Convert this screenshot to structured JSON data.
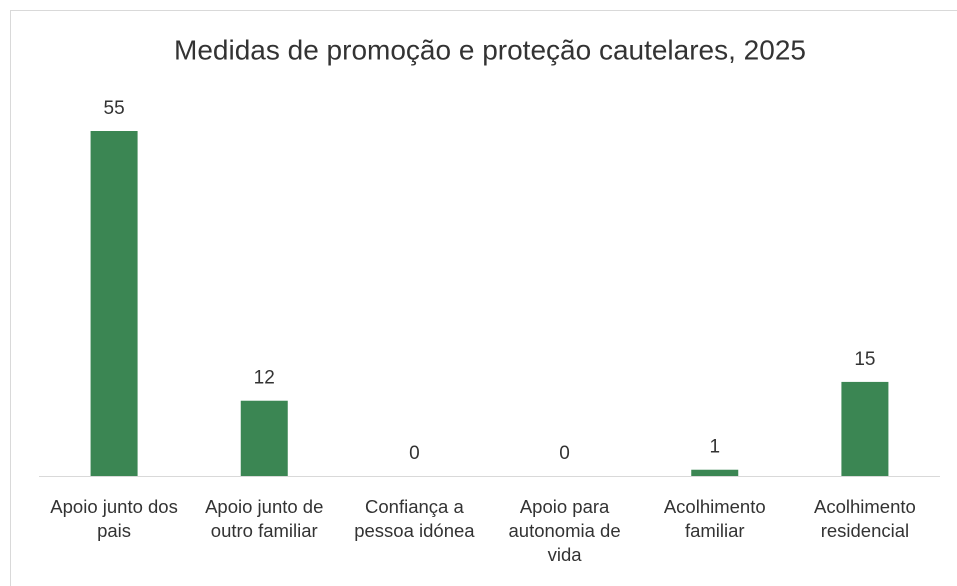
{
  "chart_data": {
    "type": "bar",
    "title": "Medidas de promoção e proteção cautelares, 2025",
    "categories": [
      "Apoio junto dos pais",
      "Apoio junto de outro familiar",
      "Confiança a pessoa idónea",
      "Apoio para autonomia de vida",
      "Acolhimento familiar",
      "Acolhimento residencial"
    ],
    "values": [
      55,
      12,
      0,
      0,
      1,
      15
    ],
    "color": "#3b8653"
  }
}
